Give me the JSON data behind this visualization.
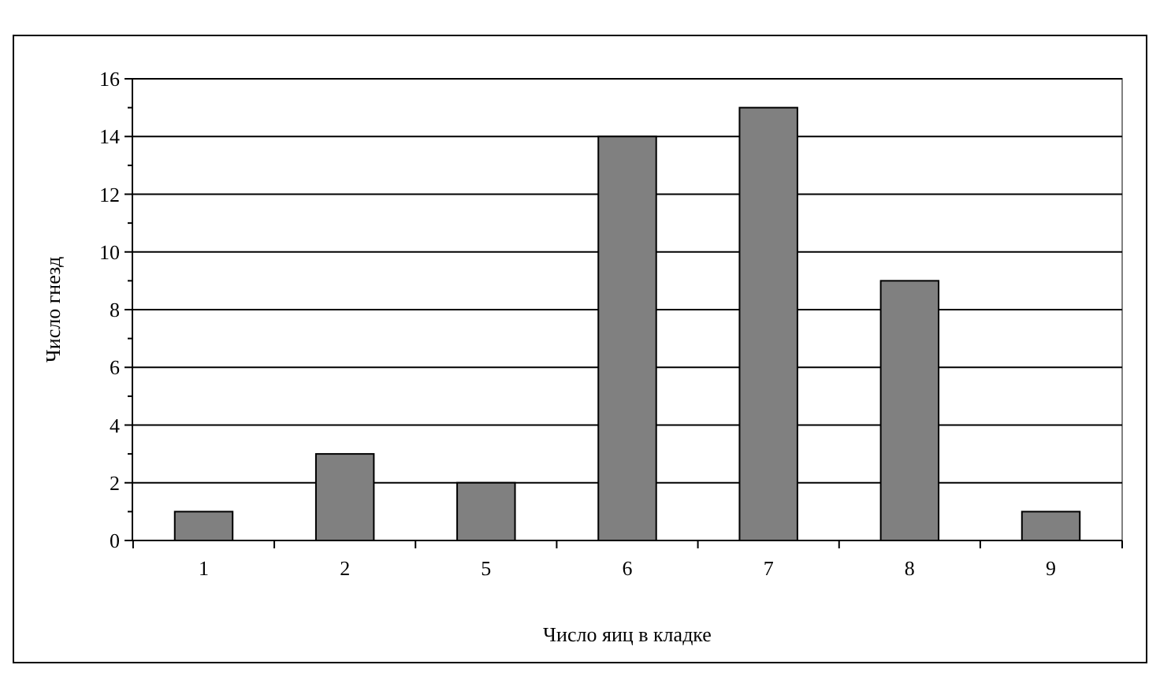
{
  "chart_data": {
    "type": "bar",
    "xlabel": "Число яиц в кладке",
    "ylabel": "Число гнезд",
    "categories": [
      "1",
      "2",
      "5",
      "6",
      "7",
      "8",
      "9"
    ],
    "values": [
      1,
      3,
      2,
      14,
      15,
      9,
      1
    ],
    "color": "#808080",
    "ylim": [
      0,
      16
    ],
    "yticks": [
      0,
      {
        "value": 1,
        "label": null
      },
      2,
      {
        "value": 3,
        "label": null
      },
      4,
      {
        "value": 5,
        "label": null
      },
      6,
      {
        "value": 7,
        "label": null
      },
      8,
      {
        "value": 9,
        "label": null
      },
      10,
      {
        "value": 11,
        "label": null
      },
      12,
      {
        "value": 13,
        "label": null
      },
      14,
      {
        "value": 15,
        "label": null
      },
      16
    ],
    "grid": "y"
  }
}
